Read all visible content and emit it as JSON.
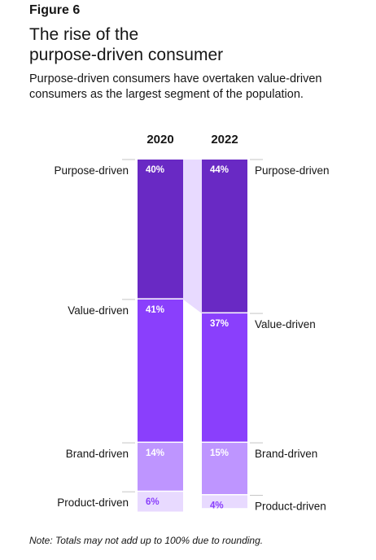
{
  "figure_label": "Figure 6",
  "title_lines": [
    "The rise of the",
    "purpose-driven consumer"
  ],
  "subtitle": "Purpose-driven consumers have overtaken value-driven consumers as the largest segment of the population.",
  "note": "Note: Totals may not add up to 100% due to rounding.",
  "colors": {
    "purpose": "#6929c4",
    "value": "#8a3ffc",
    "brand": "#be95ff",
    "product": "#e8daff",
    "connector": "#e8daff",
    "tick": "#c6c6c6",
    "label_light": "#ffffff",
    "label_dark": "#8a3ffc"
  },
  "chart_data": {
    "type": "bar",
    "stacked": true,
    "orientation": "vertical",
    "categories": [
      "2020",
      "2022"
    ],
    "series": [
      {
        "name": "Purpose-driven",
        "values": [
          40,
          44
        ],
        "labels": [
          "40%",
          "44%"
        ]
      },
      {
        "name": "Value-driven",
        "values": [
          41,
          37
        ],
        "labels": [
          "41%",
          "37%"
        ]
      },
      {
        "name": "Brand-driven",
        "values": [
          14,
          15
        ],
        "labels": [
          "14%",
          "15%"
        ]
      },
      {
        "name": "Product-driven",
        "values": [
          6,
          4
        ],
        "labels": [
          "6%",
          "4%"
        ]
      }
    ],
    "series_labels_left": [
      "Purpose-driven",
      "Value-driven",
      "Brand-driven",
      "Product-driven"
    ],
    "series_labels_right": [
      "Purpose-driven",
      "Value-driven",
      "Brand-driven",
      "Product-driven"
    ],
    "ylim": [
      0,
      101
    ],
    "grid": false,
    "legend": "none"
  }
}
